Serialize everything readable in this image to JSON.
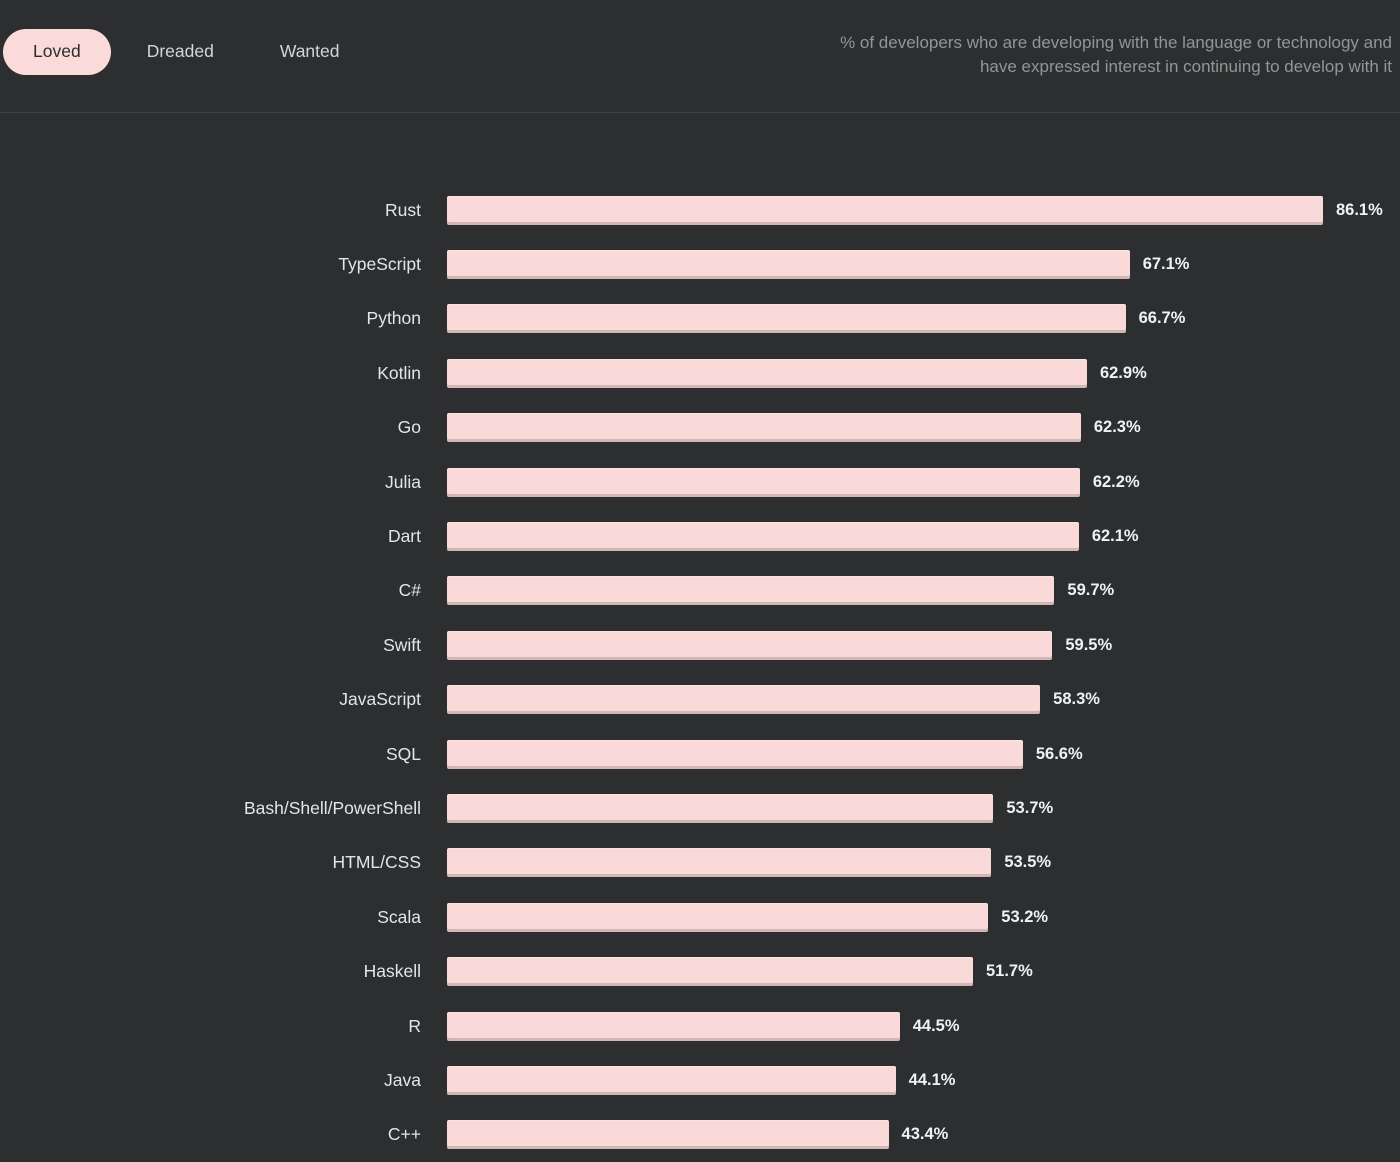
{
  "tabs": [
    {
      "label": "Loved",
      "active": true
    },
    {
      "label": "Dreaded",
      "active": false
    },
    {
      "label": "Wanted",
      "active": false
    }
  ],
  "description": "% of developers who are developing with the language or technology and have expressed interest in continuing to develop with it",
  "colors": {
    "background": "#2c2e2f",
    "bar": "#f9dad8",
    "active_tab_bg": "#fadbd9",
    "active_tab_text": "#2b2d2e",
    "tab_text": "#d4d5d6",
    "label_text": "#e4e5e6",
    "value_text": "#f0f1f2",
    "description_text": "#939596",
    "divider": "#3e4041"
  },
  "chart_data": {
    "type": "bar",
    "orientation": "horizontal",
    "title": "",
    "xlabel": "",
    "ylabel": "",
    "grid": false,
    "legend": "none",
    "xlim": [
      0,
      100
    ],
    "value_suffix": "%",
    "categories": [
      "Rust",
      "TypeScript",
      "Python",
      "Kotlin",
      "Go",
      "Julia",
      "Dart",
      "C#",
      "Swift",
      "JavaScript",
      "SQL",
      "Bash/Shell/PowerShell",
      "HTML/CSS",
      "Scala",
      "Haskell",
      "R",
      "Java",
      "C++"
    ],
    "values": [
      86.1,
      67.1,
      66.7,
      62.9,
      62.3,
      62.2,
      62.1,
      59.7,
      59.5,
      58.3,
      56.6,
      53.7,
      53.5,
      53.2,
      51.7,
      44.5,
      44.1,
      43.4
    ]
  }
}
